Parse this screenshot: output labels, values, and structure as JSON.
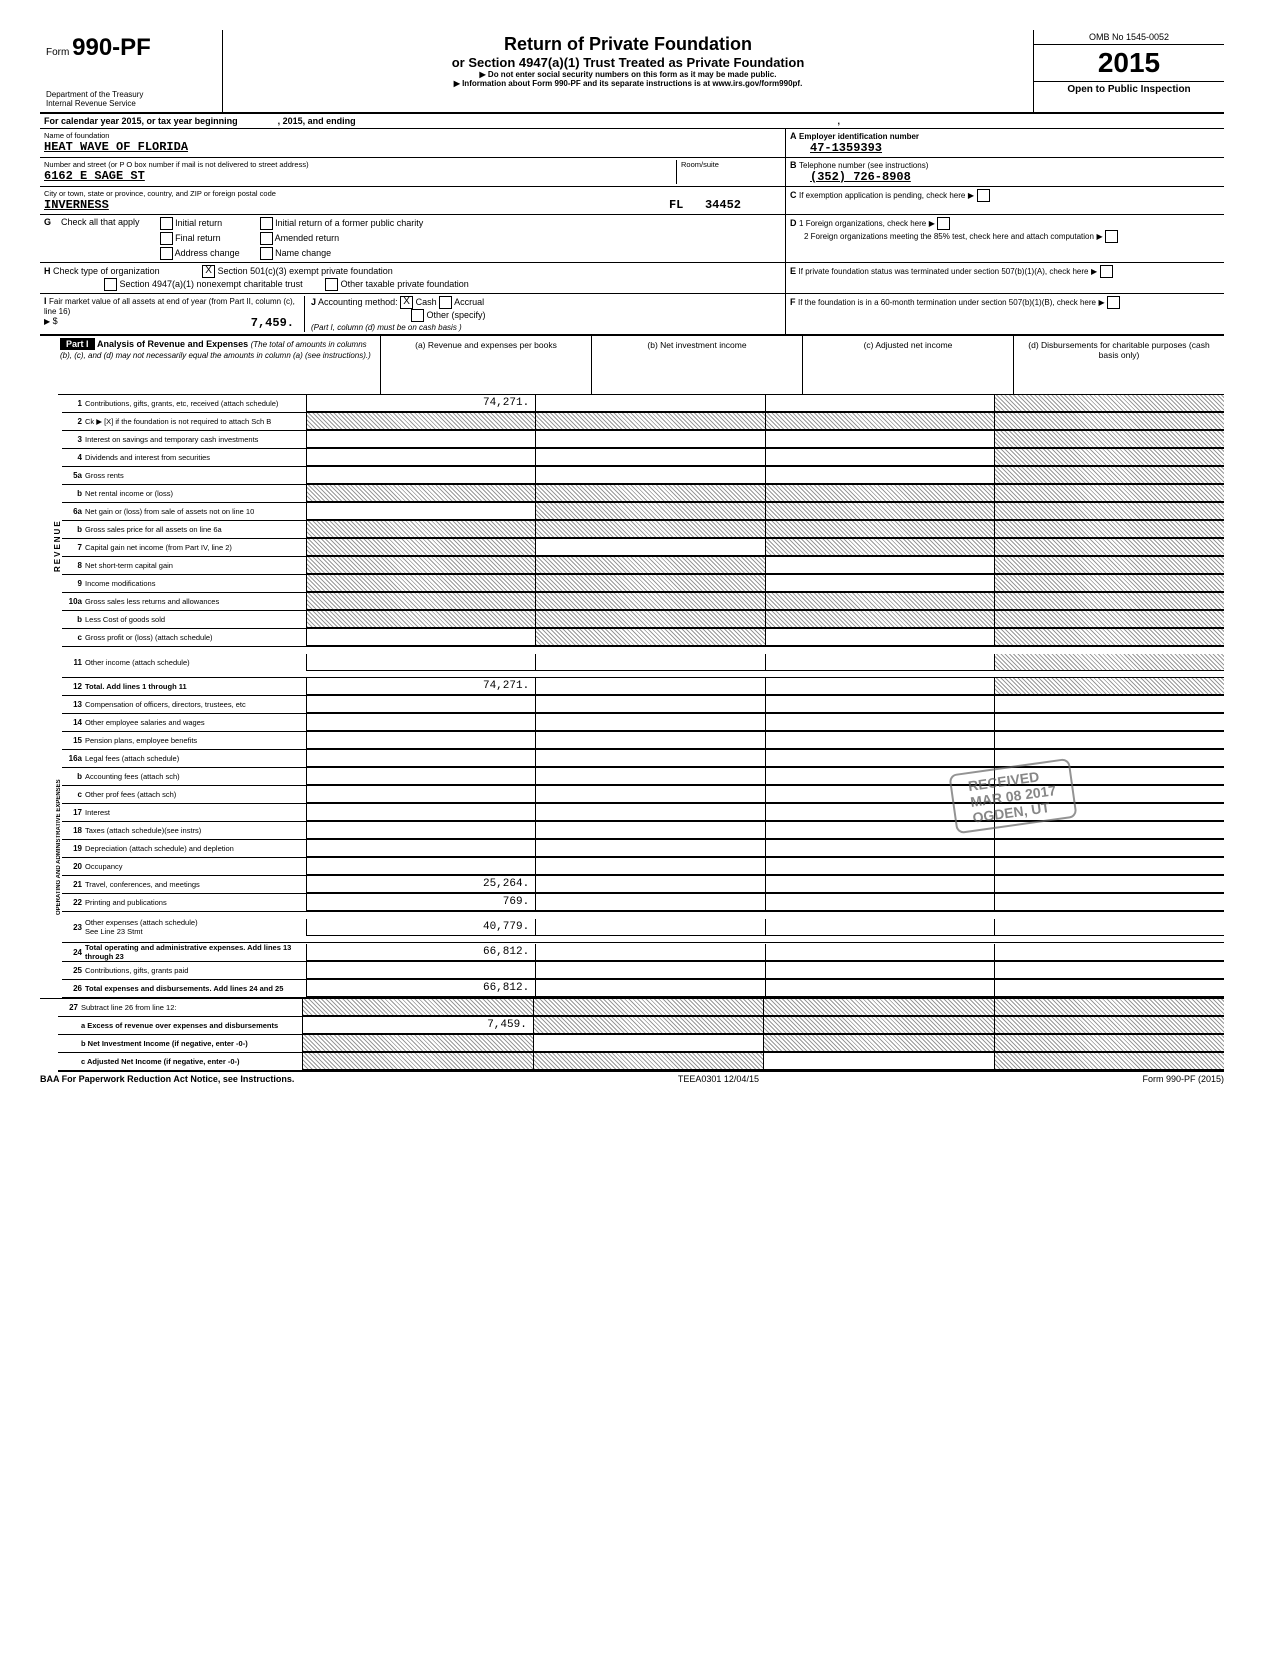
{
  "header": {
    "formPrefix": "Form",
    "formNumber": "990-PF",
    "dept": "Department of the Treasury\nInternal Revenue Service",
    "titleMain": "Return of Private Foundation",
    "titleSub": "or Section 4947(a)(1) Trust Treated as Private Foundation",
    "note1": "▶ Do not enter social security numbers on this form as it may be made public.",
    "note2": "▶ Information about Form 990-PF and its separate instructions is at www.irs.gov/form990pf.",
    "omb": "OMB No 1545-0052",
    "year": "2015",
    "inspection": "Open to Public Inspection"
  },
  "calendar": {
    "line": "For calendar year 2015, or tax year beginning",
    "mid": ", 2015, and ending",
    "end": ","
  },
  "foundation": {
    "nameLabel": "Name of foundation",
    "name": "HEAT WAVE OF FLORIDA",
    "addrLabel": "Number and street (or P O box number if mail is not delivered to street address)",
    "addr": "6162 E SAGE ST",
    "roomLabel": "Room/suite",
    "cityLabel": "City or town, state or province, country, and ZIP or foreign postal code",
    "city": "INVERNESS",
    "state": "FL",
    "zip": "34452"
  },
  "boxA": {
    "letter": "A",
    "label": "Employer identification number",
    "value": "47-1359393"
  },
  "boxB": {
    "letter": "B",
    "label": "Telephone number (see instructions)",
    "value": "(352) 726-8908"
  },
  "boxC": {
    "letter": "C",
    "label": "If exemption application is pending, check here"
  },
  "boxD": {
    "letter": "D",
    "d1": "1 Foreign organizations, check here",
    "d2": "2 Foreign organizations meeting the 85% test, check here and attach computation"
  },
  "boxE": {
    "letter": "E",
    "label": "If private foundation status was terminated under section 507(b)(1)(A), check here"
  },
  "boxF": {
    "letter": "F",
    "label": "If the foundation is in a 60-month termination under section 507(b)(1)(B), check here"
  },
  "boxG": {
    "letter": "G",
    "label": "Check all that apply",
    "opts": [
      "Initial return",
      "Final return",
      "Address change",
      "Initial return of a former public charity",
      "Amended return",
      "Name change"
    ]
  },
  "boxH": {
    "letter": "H",
    "label": "Check type of organization",
    "opt1": "Section 501(c)(3) exempt private foundation",
    "opt1checked": "X",
    "opt2": "Section 4947(a)(1) nonexempt charitable trust",
    "opt3": "Other taxable private foundation"
  },
  "boxI": {
    "letter": "I",
    "label": "Fair market value of all assets at end of year (from Part II, column (c), line 16)",
    "value": "7,459."
  },
  "boxJ": {
    "letter": "J",
    "label": "Accounting method:",
    "cash": "Cash",
    "cashChecked": "X",
    "accrual": "Accrual",
    "other": "Other (specify)",
    "note": "(Part I, column (d) must be on cash basis )"
  },
  "part1": {
    "header": "Part I",
    "title": "Analysis of Revenue and Expenses",
    "subtitle": "(The total of amounts in columns (b), (c), and (d) may not necessarily equal the amounts in column (a) (see instructions).)",
    "colA": "(a) Revenue and expenses per books",
    "colB": "(b) Net investment income",
    "colC": "(c) Adjusted net income",
    "colD": "(d) Disbursements for charitable purposes (cash basis only)"
  },
  "sections": {
    "revenue": "REVENUE",
    "operating": "OPERATING AND ADMINISTRATIVE EXPENSES"
  },
  "lines": [
    {
      "num": "1",
      "label": "Contributions, gifts, grants, etc, received (attach schedule)",
      "a": "74,271.",
      "shadeB": false,
      "shadeC": false,
      "shadeD": true
    },
    {
      "num": "2",
      "label": "Ck ▶ [X] if the foundation is not required to attach Sch B",
      "shadeA": true,
      "shadeB": true,
      "shadeC": true,
      "shadeD": true
    },
    {
      "num": "3",
      "label": "Interest on savings and temporary cash investments",
      "shadeD": true
    },
    {
      "num": "4",
      "label": "Dividends and interest from securities",
      "shadeD": true
    },
    {
      "num": "5a",
      "label": "Gross rents",
      "shadeD": true
    },
    {
      "num": "b",
      "label": "Net rental income or (loss)",
      "shadeA": true,
      "shadeB": true,
      "shadeC": true,
      "shadeD": true
    },
    {
      "num": "6a",
      "label": "Net gain or (loss) from sale of assets not on line 10",
      "shadeB": true,
      "shadeC": true,
      "shadeD": true
    },
    {
      "num": "b",
      "label": "Gross sales price for all assets on line 6a",
      "shadeA": true,
      "shadeB": true,
      "shadeC": true,
      "shadeD": true
    },
    {
      "num": "7",
      "label": "Capital gain net income (from Part IV, line 2)",
      "shadeA": true,
      "shadeC": true,
      "shadeD": true
    },
    {
      "num": "8",
      "label": "Net short-term capital gain",
      "shadeA": true,
      "shadeB": true,
      "shadeD": true
    },
    {
      "num": "9",
      "label": "Income modifications",
      "shadeA": true,
      "shadeB": true,
      "shadeD": true
    },
    {
      "num": "10a",
      "label": "Gross sales less returns and allowances",
      "shadeA": true,
      "shadeB": true,
      "shadeC": true,
      "shadeD": true
    },
    {
      "num": "b",
      "label": "Less Cost of goods sold",
      "shadeA": true,
      "shadeB": true,
      "shadeC": true,
      "shadeD": true
    },
    {
      "num": "c",
      "label": "Gross profit or (loss) (attach schedule)",
      "shadeB": true,
      "shadeD": true
    },
    {
      "num": "11",
      "label": "Other income (attach schedule)",
      "shadeD": true,
      "tall": true
    },
    {
      "num": "12",
      "label": "Total.   Add lines 1 through 11",
      "a": "74,271.",
      "bold": true,
      "shadeD": true
    }
  ],
  "oplines": [
    {
      "num": "13",
      "label": "Compensation of officers, directors, trustees, etc"
    },
    {
      "num": "14",
      "label": "Other employee salaries and wages"
    },
    {
      "num": "15",
      "label": "Pension plans, employee benefits"
    },
    {
      "num": "16a",
      "label": "Legal fees (attach schedule)"
    },
    {
      "num": "b",
      "label": "Accounting fees (attach sch)"
    },
    {
      "num": "c",
      "label": "Other prof fees (attach sch)"
    },
    {
      "num": "17",
      "label": "Interest"
    },
    {
      "num": "18",
      "label": "Taxes (attach schedule)(see instrs)"
    },
    {
      "num": "19",
      "label": "Depreciation (attach schedule) and depletion"
    },
    {
      "num": "20",
      "label": "Occupancy"
    },
    {
      "num": "21",
      "label": "Travel, conferences, and meetings",
      "a": "25,264."
    },
    {
      "num": "22",
      "label": "Printing and publications",
      "a": "769."
    },
    {
      "num": "23",
      "label": "Other expenses (attach schedule)\nSee Line 23 Stmt",
      "a": "40,779.",
      "tall": true
    },
    {
      "num": "24",
      "label": "Total operating and administrative expenses. Add lines 13 through 23",
      "a": "66,812.",
      "bold": true
    },
    {
      "num": "25",
      "label": "Contributions, gifts, grants paid"
    },
    {
      "num": "26",
      "label": "Total expenses and disbursements. Add lines 24 and 25",
      "a": "66,812.",
      "bold": true
    }
  ],
  "line27": {
    "num": "27",
    "label": "Subtract line 26 from line 12:",
    "a_label": "a Excess of revenue over expenses and disbursements",
    "a_val": "7,459.",
    "b_label": "b Net Investment Income (if negative, enter -0-)",
    "c_label": "c Adjusted Net Income (if negative, enter -0-)"
  },
  "stamp": {
    "line1": "RECEIVED",
    "line2": "MAR 08 2017",
    "line3": "OGDEN, UT"
  },
  "footer": {
    "left": "BAA For Paperwork Reduction Act Notice, see Instructions.",
    "center": "TEEA0301   12/04/15",
    "right": "Form 990-PF (2015)"
  }
}
